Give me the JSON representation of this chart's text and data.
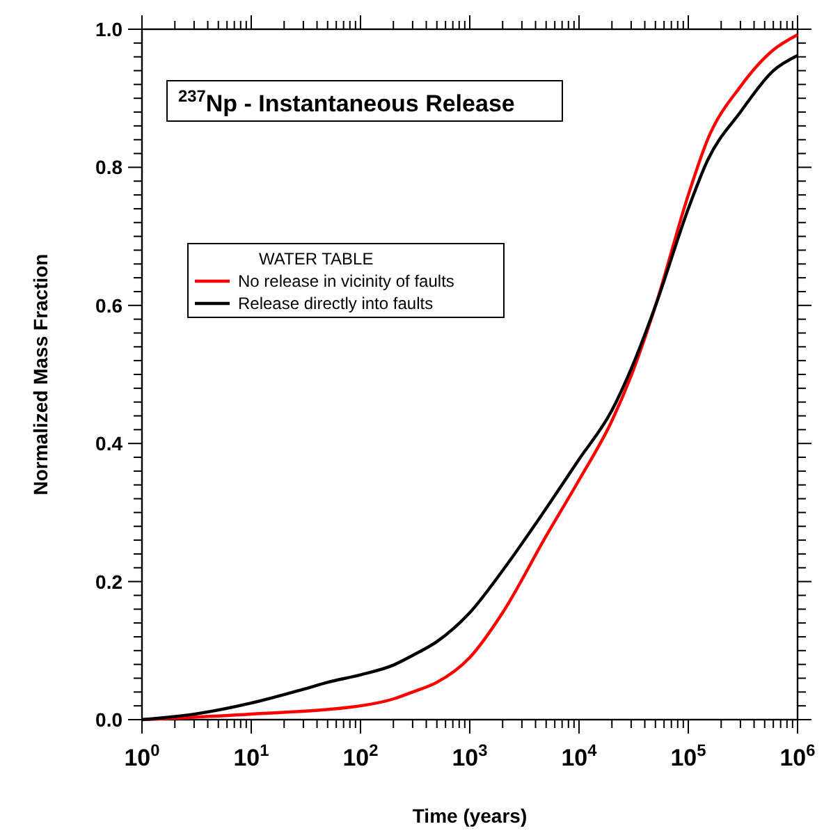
{
  "chart_data": {
    "type": "line",
    "title": "$^{237}$Np - Instantaneous Release",
    "xlabel": "Time (years)",
    "ylabel": "Normalized Mass Fraction",
    "legend_title": "WATER TABLE",
    "legend": "left",
    "log": "x",
    "grid": false,
    "line_style": "solid",
    "marker": "none",
    "xlim": [
      1,
      1000000
    ],
    "ylim": [
      0,
      1
    ],
    "xticks": [
      {
        "value": 1,
        "label": "10$^{0}$"
      },
      {
        "value": 10,
        "label": "10$^{1}$"
      },
      {
        "value": 100,
        "label": "10$^{2}$"
      },
      {
        "value": 1000,
        "label": "10$^{3}$"
      },
      {
        "value": 10000,
        "label": "10$^{4}$"
      },
      {
        "value": 100000,
        "label": "10$^{5}$"
      },
      {
        "value": 1000000,
        "label": "10$^{6}$"
      }
    ],
    "yticks": [
      {
        "value": 0,
        "label": "0.0"
      },
      {
        "value": 0.2,
        "label": "0.2"
      },
      {
        "value": 0.4,
        "label": "0.4"
      },
      {
        "value": 0.6,
        "label": "0.6"
      },
      {
        "value": 0.8,
        "label": "0.8"
      },
      {
        "value": 1,
        "label": "1.0"
      }
    ],
    "series": [
      {
        "name": "No release in vicinity of faults",
        "color": "#ff0000",
        "x": [
          1,
          10,
          100,
          200,
          300,
          500,
          1000,
          2000,
          5000,
          10000,
          20000,
          30000,
          50000,
          100000,
          150000,
          300000,
          600000,
          1000000
        ],
        "values": [
          0.0,
          0.008,
          0.02,
          0.03,
          0.04,
          0.054,
          0.09,
          0.155,
          0.266,
          0.347,
          0.433,
          0.498,
          0.599,
          0.76,
          0.84,
          0.917,
          0.97,
          0.992
        ]
      },
      {
        "name": "Release directly into faults",
        "color": "#000000",
        "x": [
          1,
          3,
          10,
          30,
          50,
          100,
          200,
          300,
          500,
          1000,
          2000,
          5000,
          10000,
          20000,
          30000,
          50000,
          100000,
          150000,
          300000,
          600000,
          1000000
        ],
        "values": [
          0.0,
          0.008,
          0.024,
          0.044,
          0.054,
          0.065,
          0.079,
          0.093,
          0.113,
          0.155,
          0.216,
          0.306,
          0.377,
          0.448,
          0.508,
          0.599,
          0.74,
          0.81,
          0.88,
          0.94,
          0.962
        ]
      }
    ]
  }
}
